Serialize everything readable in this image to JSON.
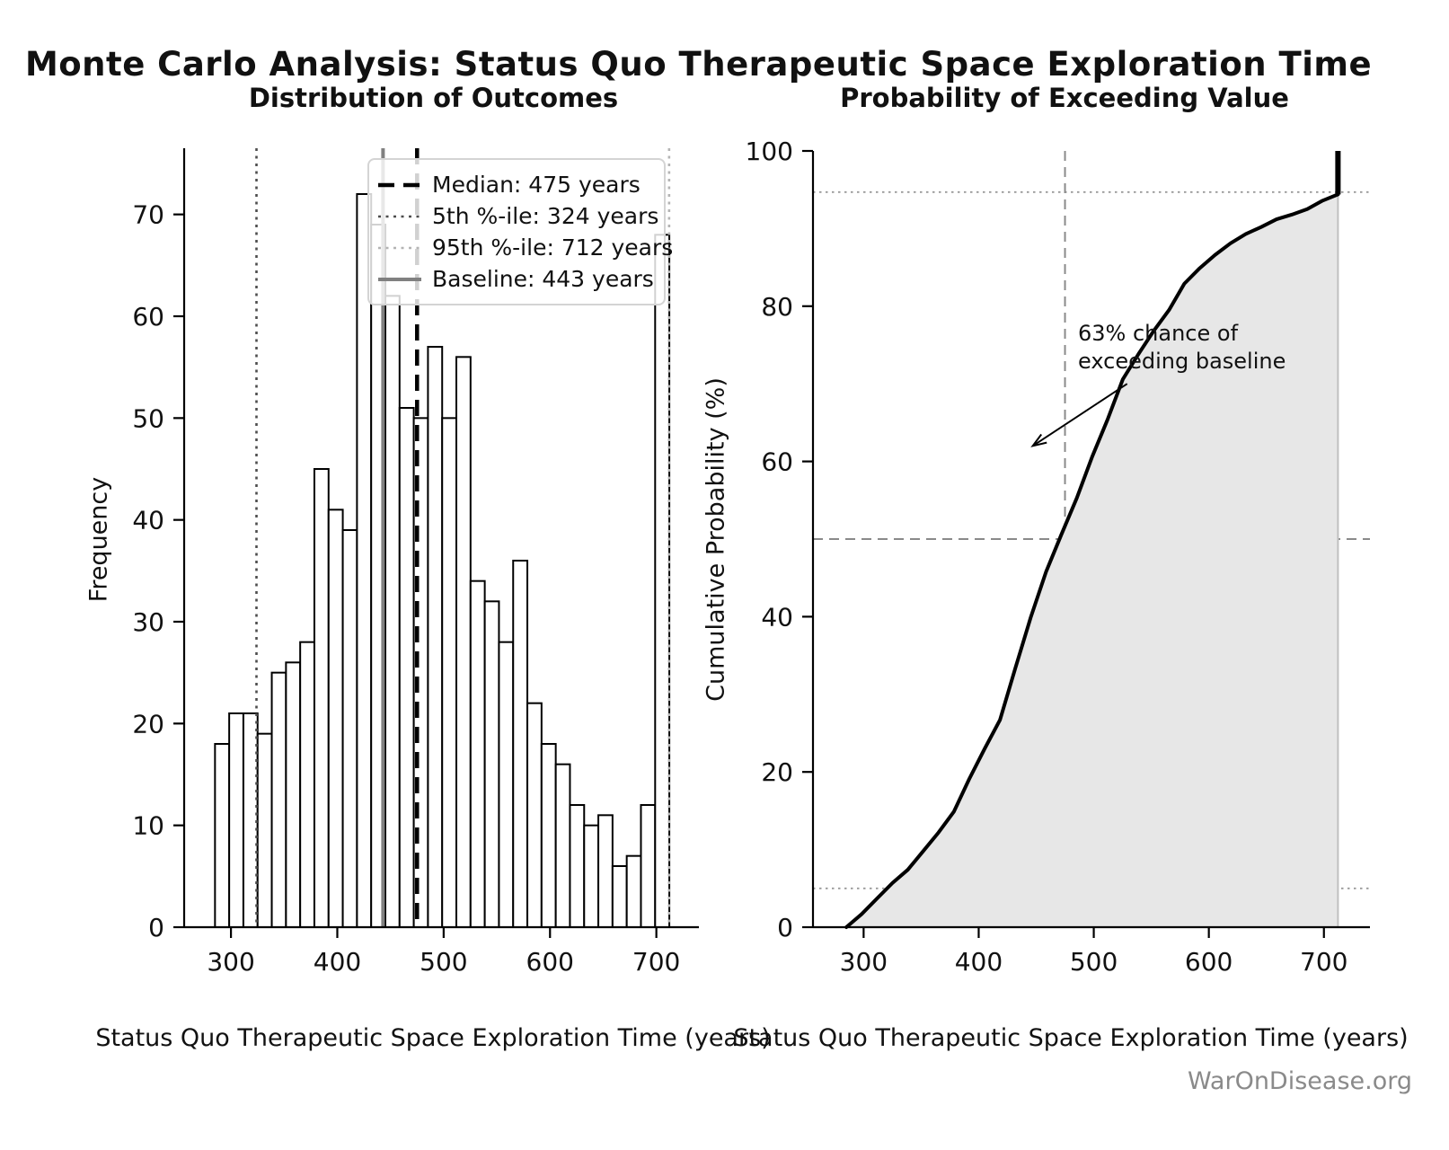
{
  "figure": {
    "title": "Monte Carlo Analysis: Status Quo Therapeutic Space Exploration Time",
    "watermark": "WarOnDisease.org"
  },
  "chart_data": [
    {
      "type": "bar",
      "title": "Distribution of Outcomes",
      "xlabel": "Status Quo Therapeutic Space Exploration Time (years)",
      "ylabel": "Frequency",
      "bin_start": 285,
      "bin_width": 13.35,
      "values": [
        18,
        21,
        21,
        19,
        25,
        26,
        28,
        45,
        41,
        39,
        72,
        69,
        62,
        51,
        50,
        57,
        50,
        56,
        34,
        32,
        28,
        36,
        22,
        18,
        16,
        12,
        10,
        11,
        6,
        7,
        12,
        68
      ],
      "bar_fill": "#ffffff",
      "bar_edge": "#000000",
      "xlim": [
        256,
        740
      ],
      "ylim": [
        0,
        76.5
      ],
      "xticks": [
        300,
        400,
        500,
        600,
        700
      ],
      "yticks": [
        0,
        10,
        20,
        30,
        40,
        50,
        60,
        70
      ],
      "grid": false,
      "legend_position": "upper right",
      "ref_lines": [
        {
          "label": "Median: 475 years",
          "value": 475,
          "style": "dashed",
          "color": "#000000",
          "width": 4.5
        },
        {
          "label": "5th %-ile: 324 years",
          "value": 324,
          "style": "dotted",
          "color": "#4d4d4d",
          "width": 2.6
        },
        {
          "label": "95th %-ile: 712 years",
          "value": 712,
          "style": "dotted",
          "color": "#b4b4b4",
          "width": 2.6
        },
        {
          "label": "Baseline: 443 years",
          "value": 443,
          "style": "solid",
          "color": "#808080",
          "width": 4
        }
      ]
    },
    {
      "type": "line",
      "title": "Probability of Exceeding Value",
      "xlabel": "Status Quo Therapeutic Space Exploration Time (years)",
      "ylabel": "Cumulative Probability (%)",
      "x": [
        285.0,
        298.4,
        311.7,
        325.1,
        338.4,
        351.8,
        365.1,
        378.5,
        391.8,
        405.2,
        418.5,
        431.9,
        445.2,
        458.6,
        471.9,
        485.3,
        498.6,
        512.0,
        525.3,
        538.7,
        552.0,
        565.4,
        578.7,
        592.1,
        605.4,
        618.8,
        632.1,
        645.5,
        658.8,
        672.2,
        685.5,
        698.9,
        712.2
      ],
      "y": [
        0,
        1.7,
        3.7,
        5.7,
        7.4,
        9.8,
        12.2,
        14.9,
        19.1,
        23.0,
        26.7,
        33.4,
        39.9,
        45.8,
        50.6,
        55.3,
        60.6,
        65.4,
        70.6,
        73.8,
        76.8,
        79.5,
        82.9,
        84.9,
        86.6,
        88.1,
        89.3,
        90.2,
        91.2,
        91.8,
        92.5,
        93.6,
        94.4
      ],
      "jump": {
        "x": 712.2,
        "from": 94.4,
        "to": 100
      },
      "line_color": "#000000",
      "fill_color": "#e7e7e7",
      "fill_edge_color": "#c0c0c0",
      "xlim": [
        256,
        740
      ],
      "ylim": [
        0,
        100
      ],
      "xticks": [
        300,
        400,
        500,
        600,
        700
      ],
      "yticks": [
        0,
        20,
        40,
        60,
        80,
        100
      ],
      "gridlines": {
        "h_dotted": [
          5,
          94.7
        ],
        "h_dashed": [
          50
        ],
        "v_dashed": [
          475
        ]
      },
      "annotation": {
        "lines": [
          "63% chance of",
          "exceeding baseline"
        ],
        "arrow_tail": [
          529,
          70
        ],
        "arrow_tip": [
          447,
          62
        ]
      }
    }
  ]
}
